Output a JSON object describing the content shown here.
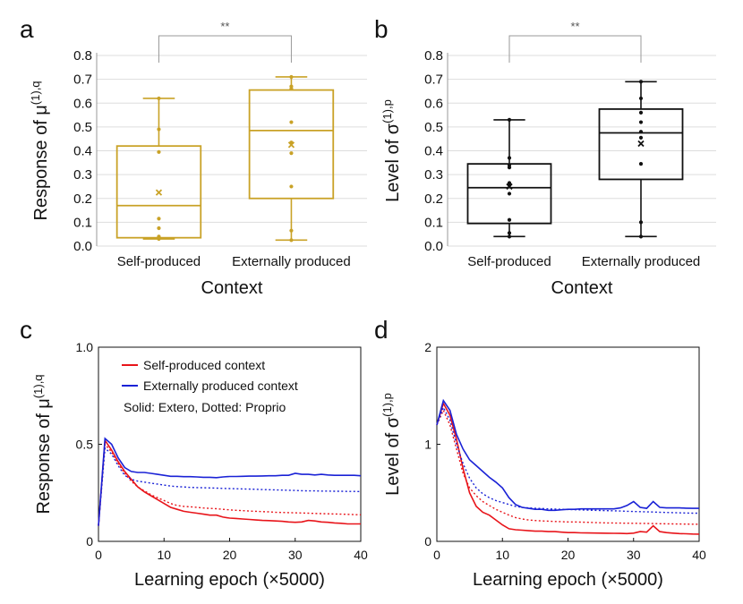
{
  "panels": {
    "a": {
      "letter": "a",
      "ylabel": "Response of μ",
      "ysup": "(1),q",
      "xlabel": "Context",
      "sig": "**"
    },
    "b": {
      "letter": "b",
      "ylabel": "Level of σ",
      "ysup": "(1),p",
      "xlabel": "Context",
      "sig": "**"
    },
    "c": {
      "letter": "c",
      "ylabel": "Response of μ",
      "ysup": "(1),q",
      "xlabel": "Learning epoch (×5000)",
      "legend": {
        "self": "Self-produced context",
        "ext": "Externally produced context",
        "note": "Solid: Extero, Dotted: Proprio"
      }
    },
    "d": {
      "letter": "d",
      "ylabel": "Level of σ",
      "ysup": "(1),p",
      "xlabel": "Learning epoch (×5000)"
    }
  },
  "colors": {
    "gold": "#c9a227",
    "black": "#111111",
    "red": "#e8141a",
    "blue": "#1a22d6"
  },
  "chart_data": [
    {
      "id": "a",
      "type": "box",
      "color": "#c9a227",
      "categories": [
        "Self-produced",
        "Externally produced"
      ],
      "ylim": [
        0,
        0.8
      ],
      "yticks": [
        "0.0",
        "0.1",
        "0.2",
        "0.3",
        "0.4",
        "0.5",
        "0.6",
        "0.7",
        "0.8"
      ],
      "boxes": [
        {
          "min": 0.03,
          "q1": 0.035,
          "median": 0.17,
          "q3": 0.42,
          "max": 0.62,
          "mean": 0.225,
          "points": [
            0.03,
            0.04,
            0.075,
            0.115,
            0.395,
            0.49,
            0.62
          ]
        },
        {
          "min": 0.025,
          "q1": 0.2,
          "median": 0.485,
          "q3": 0.655,
          "max": 0.71,
          "mean": 0.425,
          "points": [
            0.025,
            0.065,
            0.25,
            0.39,
            0.435,
            0.52,
            0.66,
            0.67,
            0.71
          ]
        }
      ]
    },
    {
      "id": "b",
      "type": "box",
      "color": "#111111",
      "categories": [
        "Self-produced",
        "Externally produced"
      ],
      "ylim": [
        0,
        0.8
      ],
      "yticks": [
        "0.0",
        "0.1",
        "0.2",
        "0.3",
        "0.4",
        "0.5",
        "0.6",
        "0.7",
        "0.8"
      ],
      "boxes": [
        {
          "min": 0.04,
          "q1": 0.095,
          "median": 0.245,
          "q3": 0.345,
          "max": 0.53,
          "mean": 0.25,
          "points": [
            0.04,
            0.055,
            0.11,
            0.22,
            0.255,
            0.265,
            0.33,
            0.34,
            0.37,
            0.53
          ]
        },
        {
          "min": 0.04,
          "q1": 0.28,
          "median": 0.475,
          "q3": 0.575,
          "max": 0.69,
          "mean": 0.43,
          "points": [
            0.04,
            0.1,
            0.345,
            0.455,
            0.48,
            0.52,
            0.56,
            0.62,
            0.69
          ]
        }
      ]
    },
    {
      "id": "c",
      "type": "line",
      "xlim": [
        0,
        40
      ],
      "ylim": [
        0,
        1
      ],
      "xticks": [
        "0",
        "10",
        "20",
        "30",
        "40"
      ],
      "yticks": [
        "0",
        "0.5",
        "1.0"
      ],
      "x": [
        0,
        1,
        2,
        3,
        4,
        5,
        6,
        7,
        8,
        9,
        10,
        11,
        12,
        13,
        14,
        15,
        16,
        17,
        18,
        19,
        20,
        21,
        22,
        23,
        24,
        25,
        26,
        27,
        28,
        29,
        30,
        31,
        32,
        33,
        34,
        35,
        36,
        37,
        38,
        39,
        40
      ],
      "series": [
        {
          "name": "Self-produced context (Extero)",
          "style": "solid",
          "color": "red",
          "values": [
            0.08,
            0.52,
            0.47,
            0.41,
            0.36,
            0.32,
            0.28,
            0.255,
            0.235,
            0.215,
            0.195,
            0.175,
            0.165,
            0.155,
            0.15,
            0.145,
            0.14,
            0.135,
            0.135,
            0.125,
            0.12,
            0.118,
            0.115,
            0.113,
            0.11,
            0.108,
            0.107,
            0.105,
            0.103,
            0.1,
            0.098,
            0.1,
            0.108,
            0.105,
            0.1,
            0.098,
            0.095,
            0.093,
            0.09,
            0.09,
            0.09
          ]
        },
        {
          "name": "Self-produced context (Proprio)",
          "style": "dotted",
          "color": "red",
          "values": [
            0.08,
            0.5,
            0.46,
            0.4,
            0.35,
            0.31,
            0.28,
            0.26,
            0.24,
            0.225,
            0.21,
            0.195,
            0.185,
            0.18,
            0.178,
            0.175,
            0.172,
            0.17,
            0.168,
            0.165,
            0.162,
            0.16,
            0.158,
            0.156,
            0.155,
            0.153,
            0.152,
            0.15,
            0.149,
            0.148,
            0.147,
            0.146,
            0.145,
            0.144,
            0.143,
            0.142,
            0.141,
            0.14,
            0.139,
            0.138,
            0.137
          ]
        },
        {
          "name": "Externally produced context (Extero)",
          "style": "solid",
          "color": "blue",
          "values": [
            0.08,
            0.53,
            0.5,
            0.43,
            0.38,
            0.36,
            0.355,
            0.355,
            0.35,
            0.345,
            0.34,
            0.335,
            0.335,
            0.333,
            0.333,
            0.332,
            0.33,
            0.33,
            0.328,
            0.332,
            0.334,
            0.334,
            0.335,
            0.336,
            0.336,
            0.337,
            0.338,
            0.338,
            0.34,
            0.34,
            0.35,
            0.345,
            0.345,
            0.342,
            0.345,
            0.342,
            0.34,
            0.34,
            0.34,
            0.34,
            0.338
          ]
        },
        {
          "name": "Externally produced context (Proprio)",
          "style": "dotted",
          "color": "blue",
          "values": [
            0.08,
            0.48,
            0.45,
            0.39,
            0.34,
            0.32,
            0.31,
            0.305,
            0.3,
            0.295,
            0.29,
            0.285,
            0.282,
            0.28,
            0.278,
            0.277,
            0.276,
            0.275,
            0.274,
            0.273,
            0.272,
            0.271,
            0.27,
            0.269,
            0.268,
            0.267,
            0.266,
            0.265,
            0.264,
            0.263,
            0.262,
            0.261,
            0.26,
            0.26,
            0.259,
            0.259,
            0.258,
            0.258,
            0.257,
            0.257,
            0.256
          ]
        }
      ]
    },
    {
      "id": "d",
      "type": "line",
      "xlim": [
        0,
        40
      ],
      "ylim": [
        0,
        2
      ],
      "xticks": [
        "0",
        "10",
        "20",
        "30",
        "40"
      ],
      "yticks": [
        "0",
        "1",
        "2"
      ],
      "x": [
        0,
        1,
        2,
        3,
        4,
        5,
        6,
        7,
        8,
        9,
        10,
        11,
        12,
        13,
        14,
        15,
        16,
        17,
        18,
        19,
        20,
        21,
        22,
        23,
        24,
        25,
        26,
        27,
        28,
        29,
        30,
        31,
        32,
        33,
        34,
        35,
        36,
        37,
        38,
        39,
        40
      ],
      "series": [
        {
          "name": "Self-produced context (Extero)",
          "style": "solid",
          "color": "red",
          "values": [
            1.2,
            1.42,
            1.3,
            1.05,
            0.75,
            0.5,
            0.36,
            0.3,
            0.27,
            0.22,
            0.17,
            0.13,
            0.12,
            0.115,
            0.11,
            0.105,
            0.105,
            0.1,
            0.1,
            0.095,
            0.09,
            0.09,
            0.088,
            0.087,
            0.086,
            0.085,
            0.084,
            0.083,
            0.082,
            0.08,
            0.085,
            0.1,
            0.095,
            0.16,
            0.1,
            0.09,
            0.085,
            0.08,
            0.078,
            0.076,
            0.075
          ]
        },
        {
          "name": "Self-produced context (Proprio)",
          "style": "dotted",
          "color": "red",
          "values": [
            1.2,
            1.35,
            1.2,
            0.95,
            0.7,
            0.55,
            0.47,
            0.41,
            0.37,
            0.33,
            0.3,
            0.27,
            0.245,
            0.23,
            0.22,
            0.215,
            0.21,
            0.208,
            0.205,
            0.203,
            0.2,
            0.2,
            0.198,
            0.196,
            0.194,
            0.192,
            0.19,
            0.189,
            0.188,
            0.187,
            0.186,
            0.185,
            0.184,
            0.183,
            0.182,
            0.181,
            0.18,
            0.179,
            0.178,
            0.177,
            0.176
          ]
        },
        {
          "name": "Externally produced context (Extero)",
          "style": "solid",
          "color": "blue",
          "values": [
            1.2,
            1.45,
            1.35,
            1.1,
            0.95,
            0.84,
            0.78,
            0.72,
            0.66,
            0.61,
            0.55,
            0.45,
            0.38,
            0.35,
            0.34,
            0.33,
            0.33,
            0.32,
            0.32,
            0.325,
            0.33,
            0.33,
            0.335,
            0.335,
            0.335,
            0.335,
            0.335,
            0.335,
            0.345,
            0.37,
            0.41,
            0.35,
            0.34,
            0.41,
            0.35,
            0.345,
            0.345,
            0.345,
            0.342,
            0.34,
            0.34
          ]
        },
        {
          "name": "Externally produced context (Proprio)",
          "style": "dotted",
          "color": "blue",
          "values": [
            1.2,
            1.38,
            1.25,
            1.0,
            0.8,
            0.65,
            0.55,
            0.49,
            0.45,
            0.42,
            0.4,
            0.38,
            0.36,
            0.35,
            0.345,
            0.34,
            0.338,
            0.335,
            0.333,
            0.33,
            0.328,
            0.326,
            0.324,
            0.322,
            0.32,
            0.318,
            0.316,
            0.314,
            0.312,
            0.31,
            0.308,
            0.306,
            0.304,
            0.302,
            0.3,
            0.298,
            0.296,
            0.294,
            0.292,
            0.29,
            0.29
          ]
        }
      ]
    }
  ]
}
